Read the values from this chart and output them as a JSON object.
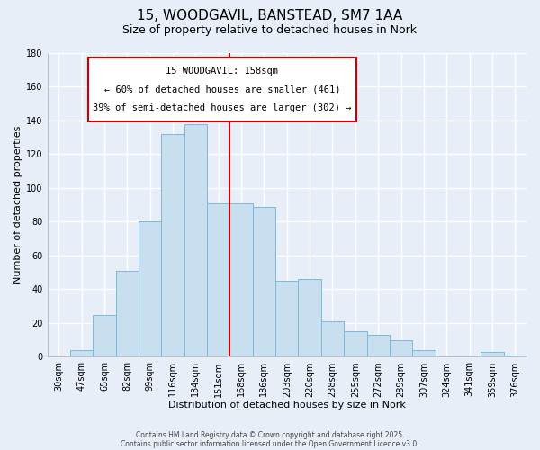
{
  "title": "15, WOODGAVIL, BANSTEAD, SM7 1AA",
  "subtitle": "Size of property relative to detached houses in Nork",
  "xlabel": "Distribution of detached houses by size in Nork",
  "ylabel": "Number of detached properties",
  "categories": [
    "30sqm",
    "47sqm",
    "65sqm",
    "82sqm",
    "99sqm",
    "116sqm",
    "134sqm",
    "151sqm",
    "168sqm",
    "186sqm",
    "203sqm",
    "220sqm",
    "238sqm",
    "255sqm",
    "272sqm",
    "289sqm",
    "307sqm",
    "324sqm",
    "341sqm",
    "359sqm",
    "376sqm"
  ],
  "values": [
    0,
    4,
    25,
    51,
    80,
    132,
    138,
    91,
    91,
    89,
    45,
    46,
    21,
    15,
    13,
    10,
    4,
    0,
    0,
    3,
    1
  ],
  "bar_color": "#c8dff0",
  "bar_edge_color": "#7fb8d8",
  "vline_x": 7,
  "vline_color": "#cc0000",
  "annotation_title": "15 WOODGAVIL: 158sqm",
  "annotation_line1": "← 60% of detached houses are smaller (461)",
  "annotation_line2": "39% of semi-detached houses are larger (302) →",
  "annotation_box_color": "#ffffff",
  "annotation_box_edge": "#cc0000",
  "ylim": [
    0,
    180
  ],
  "yticks": [
    0,
    20,
    40,
    60,
    80,
    100,
    120,
    140,
    160,
    180
  ],
  "footnote1": "Contains HM Land Registry data © Crown copyright and database right 2025.",
  "footnote2": "Contains public sector information licensed under the Open Government Licence v3.0.",
  "background_color": "#e8eef8",
  "grid_color": "#ffffff",
  "title_fontsize": 11,
  "subtitle_fontsize": 9,
  "tick_fontsize": 7,
  "ylabel_fontsize": 8,
  "xlabel_fontsize": 8,
  "footnote_fontsize": 5.5
}
